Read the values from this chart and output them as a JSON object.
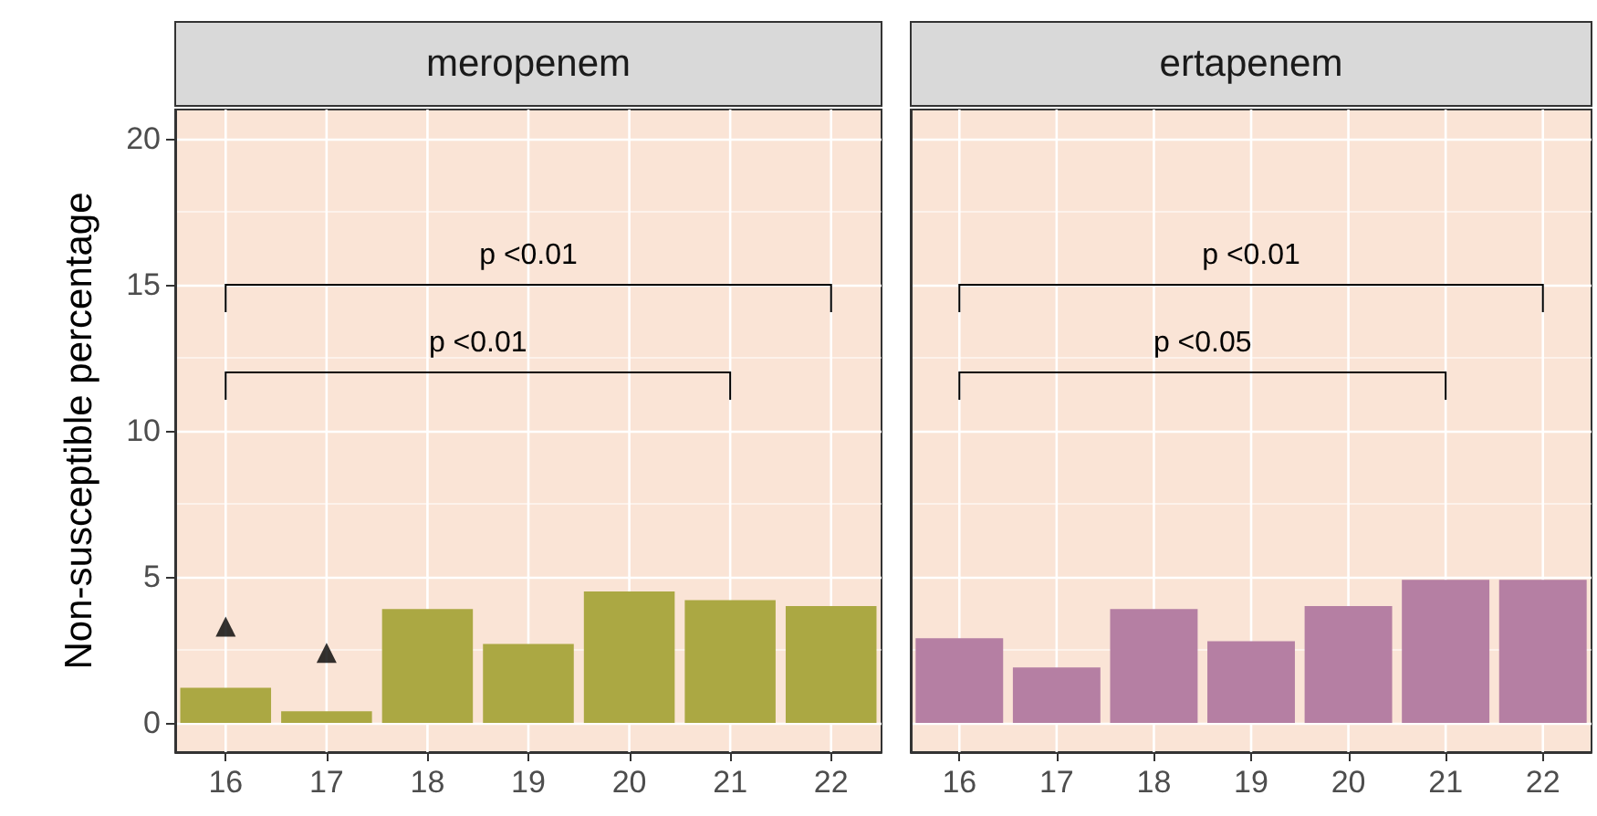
{
  "chart_data": [
    {
      "type": "bar",
      "title": "meropenem",
      "ylabel": "Non-susceptible percentage",
      "categories": [
        "16",
        "17",
        "18",
        "19",
        "20",
        "21",
        "22"
      ],
      "series": [
        {
          "color": "#aba843",
          "values": [
            1.2,
            0.4,
            3.9,
            2.7,
            4.5,
            4.2,
            4.0
          ]
        },
        {
          "type": "scatter",
          "marker": "triangle",
          "color": "#000000",
          "x": [
            "16",
            "17"
          ],
          "values": [
            3.3,
            2.4
          ]
        }
      ],
      "ylim": [
        -1,
        21
      ],
      "yticks": [
        0,
        5,
        10,
        15,
        20
      ],
      "grid": true,
      "annotations": [
        "p <0.01",
        "p <0.01"
      ]
    },
    {
      "type": "bar",
      "title": "ertapenem",
      "categories": [
        "16",
        "17",
        "18",
        "19",
        "20",
        "21",
        "22"
      ],
      "series": [
        {
          "color": "#b57fa3",
          "values": [
            2.9,
            1.9,
            3.9,
            2.8,
            4.0,
            4.9,
            4.9
          ]
        }
      ],
      "ylim": [
        -1,
        21
      ],
      "yticks": [
        0,
        5,
        10,
        15,
        20
      ],
      "grid": true,
      "tick_labels": "x",
      "annotations": [
        "p <0.01",
        "p <0.05"
      ]
    }
  ]
}
